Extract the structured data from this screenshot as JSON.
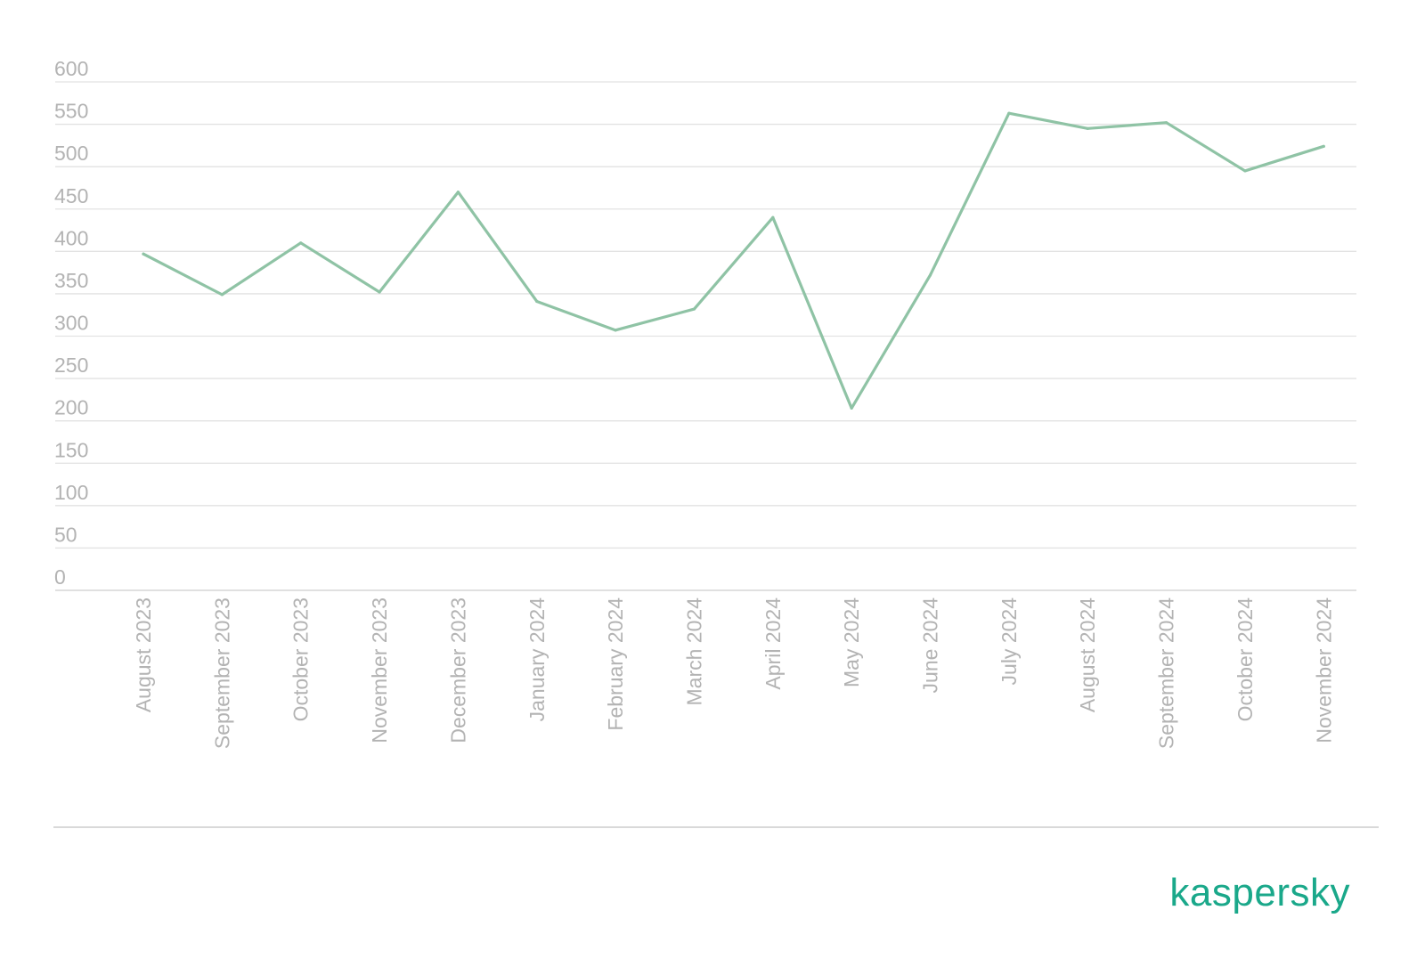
{
  "chart_data": {
    "type": "line",
    "categories": [
      "August 2023",
      "September 2023",
      "October 2023",
      "November 2023",
      "December 2023",
      "January 2024",
      "February 2024",
      "March 2024",
      "April 2024",
      "May 2024",
      "June 2024",
      "July 2024",
      "August 2024",
      "September 2024",
      "October 2024",
      "November 2024"
    ],
    "series": [
      {
        "values": [
          397,
          349,
          410,
          352,
          470,
          341,
          307,
          332,
          440,
          215,
          372,
          563,
          545,
          552,
          495,
          524
        ],
        "color": "#8fc3a5"
      }
    ],
    "yticks": [
      "0",
      "50",
      "100",
      "150",
      "200",
      "250",
      "300",
      "350",
      "400",
      "450",
      "500",
      "550",
      "600"
    ],
    "ylim": [
      0,
      600
    ],
    "grid": true,
    "legend": "none"
  },
  "brand": {
    "name": "kaspersky",
    "color": "#1aa88a"
  }
}
